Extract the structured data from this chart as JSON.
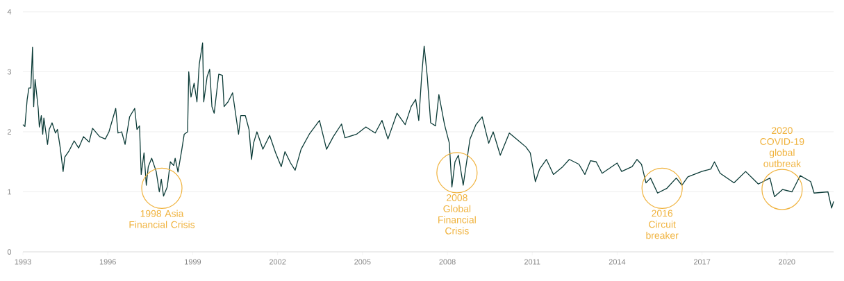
{
  "chart_data": {
    "type": "line",
    "color": "#0b3b37",
    "x": [
      1993.0,
      1993.07,
      1993.15,
      1993.21,
      1993.28,
      1993.34,
      1993.38,
      1993.43,
      1993.54,
      1993.58,
      1993.65,
      1993.7,
      1993.74,
      1993.87,
      1993.93,
      1994.03,
      1994.15,
      1994.22,
      1994.32,
      1994.42,
      1994.48,
      1994.64,
      1994.81,
      1994.97,
      1995.14,
      1995.34,
      1995.46,
      1995.71,
      1995.91,
      1996.04,
      1996.28,
      1996.36,
      1996.49,
      1996.61,
      1996.77,
      1996.95,
      1997.03,
      1997.12,
      1997.18,
      1997.28,
      1997.36,
      1997.43,
      1997.55,
      1997.71,
      1997.82,
      1997.89,
      1997.97,
      1998.1,
      1998.21,
      1998.33,
      1998.38,
      1998.48,
      1998.61,
      1998.7,
      1998.82,
      1998.86,
      1998.94,
      1999.05,
      1999.15,
      1999.23,
      1999.35,
      1999.39,
      1999.51,
      1999.6,
      1999.68,
      1999.76,
      1999.92,
      2000.05,
      2000.11,
      2000.25,
      2000.41,
      2000.62,
      2000.7,
      2000.86,
      2000.99,
      2001.08,
      2001.15,
      2001.27,
      2001.48,
      2001.72,
      2001.93,
      2002.13,
      2002.26,
      2002.46,
      2002.62,
      2002.83,
      2003.12,
      2003.48,
      2003.73,
      2003.97,
      2004.26,
      2004.38,
      2004.79,
      2005.12,
      2005.45,
      2005.69,
      2005.9,
      2006.22,
      2006.51,
      2006.72,
      2006.88,
      2006.99,
      2007.09,
      2007.18,
      2007.29,
      2007.41,
      2007.58,
      2007.7,
      2007.9,
      2008.07,
      2008.16,
      2008.27,
      2008.39,
      2008.56,
      2008.8,
      2009.01,
      2009.23,
      2009.46,
      2009.62,
      2009.87,
      2010.19,
      2010.52,
      2010.77,
      2010.93,
      2011.11,
      2011.26,
      2011.5,
      2011.75,
      2012.08,
      2012.31,
      2012.65,
      2012.86,
      2013.06,
      2013.26,
      2013.47,
      2014.0,
      2014.16,
      2014.53,
      2014.7,
      2014.86,
      2015.02,
      2015.18,
      2015.43,
      2015.76,
      2016.09,
      2016.29,
      2016.5,
      2016.99,
      2017.31,
      2017.44,
      2017.64,
      2018.13,
      2018.54,
      2018.99,
      2019.4,
      2019.56,
      2019.85,
      2020.18,
      2020.47,
      2020.84,
      2020.96,
      2021.45,
      2021.58,
      2021.65
    ],
    "values": [
      2.12,
      2.09,
      2.54,
      2.73,
      2.73,
      3.41,
      2.42,
      2.87,
      2.39,
      2.08,
      2.27,
      1.96,
      2.23,
      1.79,
      2.04,
      2.15,
      1.98,
      2.04,
      1.73,
      1.34,
      1.58,
      1.69,
      1.85,
      1.73,
      1.92,
      1.83,
      2.06,
      1.92,
      1.88,
      2.0,
      2.39,
      1.98,
      2.0,
      1.79,
      2.25,
      2.39,
      2.04,
      2.1,
      1.29,
      1.65,
      1.11,
      1.42,
      1.56,
      1.34,
      1.0,
      1.21,
      0.93,
      1.08,
      1.5,
      1.44,
      1.56,
      1.33,
      1.69,
      1.96,
      2.0,
      3.0,
      2.58,
      2.81,
      2.5,
      3.12,
      3.48,
      2.5,
      2.92,
      3.04,
      2.42,
      2.31,
      2.96,
      2.94,
      2.42,
      2.5,
      2.65,
      1.96,
      2.27,
      2.27,
      2.04,
      1.54,
      1.81,
      2.0,
      1.71,
      1.94,
      1.65,
      1.42,
      1.67,
      1.48,
      1.36,
      1.71,
      1.96,
      2.19,
      1.71,
      1.92,
      2.13,
      1.9,
      1.96,
      2.08,
      1.98,
      2.19,
      1.88,
      2.31,
      2.12,
      2.42,
      2.54,
      2.19,
      2.92,
      3.43,
      2.92,
      2.15,
      2.1,
      2.62,
      2.12,
      1.81,
      1.08,
      1.5,
      1.61,
      1.11,
      1.88,
      2.12,
      2.25,
      1.81,
      2.0,
      1.61,
      1.98,
      1.85,
      1.75,
      1.65,
      1.17,
      1.38,
      1.54,
      1.29,
      1.42,
      1.54,
      1.46,
      1.29,
      1.52,
      1.5,
      1.31,
      1.48,
      1.34,
      1.42,
      1.54,
      1.46,
      1.15,
      1.23,
      0.98,
      1.06,
      1.23,
      1.11,
      1.25,
      1.34,
      1.38,
      1.5,
      1.31,
      1.15,
      1.34,
      1.13,
      1.23,
      0.92,
      1.04,
      1.0,
      1.27,
      1.17,
      0.98,
      1.0,
      0.73,
      0.84
    ],
    "xlim": [
      1993,
      2021.65
    ],
    "ylim": [
      0,
      4
    ],
    "xticks": [
      1993,
      1996,
      1999,
      2002,
      2005,
      2008,
      2011,
      2014,
      2017,
      2020
    ],
    "yticks": [
      0,
      1,
      2,
      3,
      4
    ],
    "grid": "y",
    "annotations": [
      {
        "text": "1998 Asia Financial Crisis",
        "x": 1997.91,
        "y": 1.06
      },
      {
        "text": "2008 Global Financial Crisis",
        "x": 2008.34,
        "y": 1.32
      },
      {
        "text": "2016 Circuit breaker",
        "x": 2015.59,
        "y": 1.06
      },
      {
        "text": "2020 COVID-19 global outbreak",
        "x": 2019.83,
        "y": 1.04
      }
    ]
  }
}
